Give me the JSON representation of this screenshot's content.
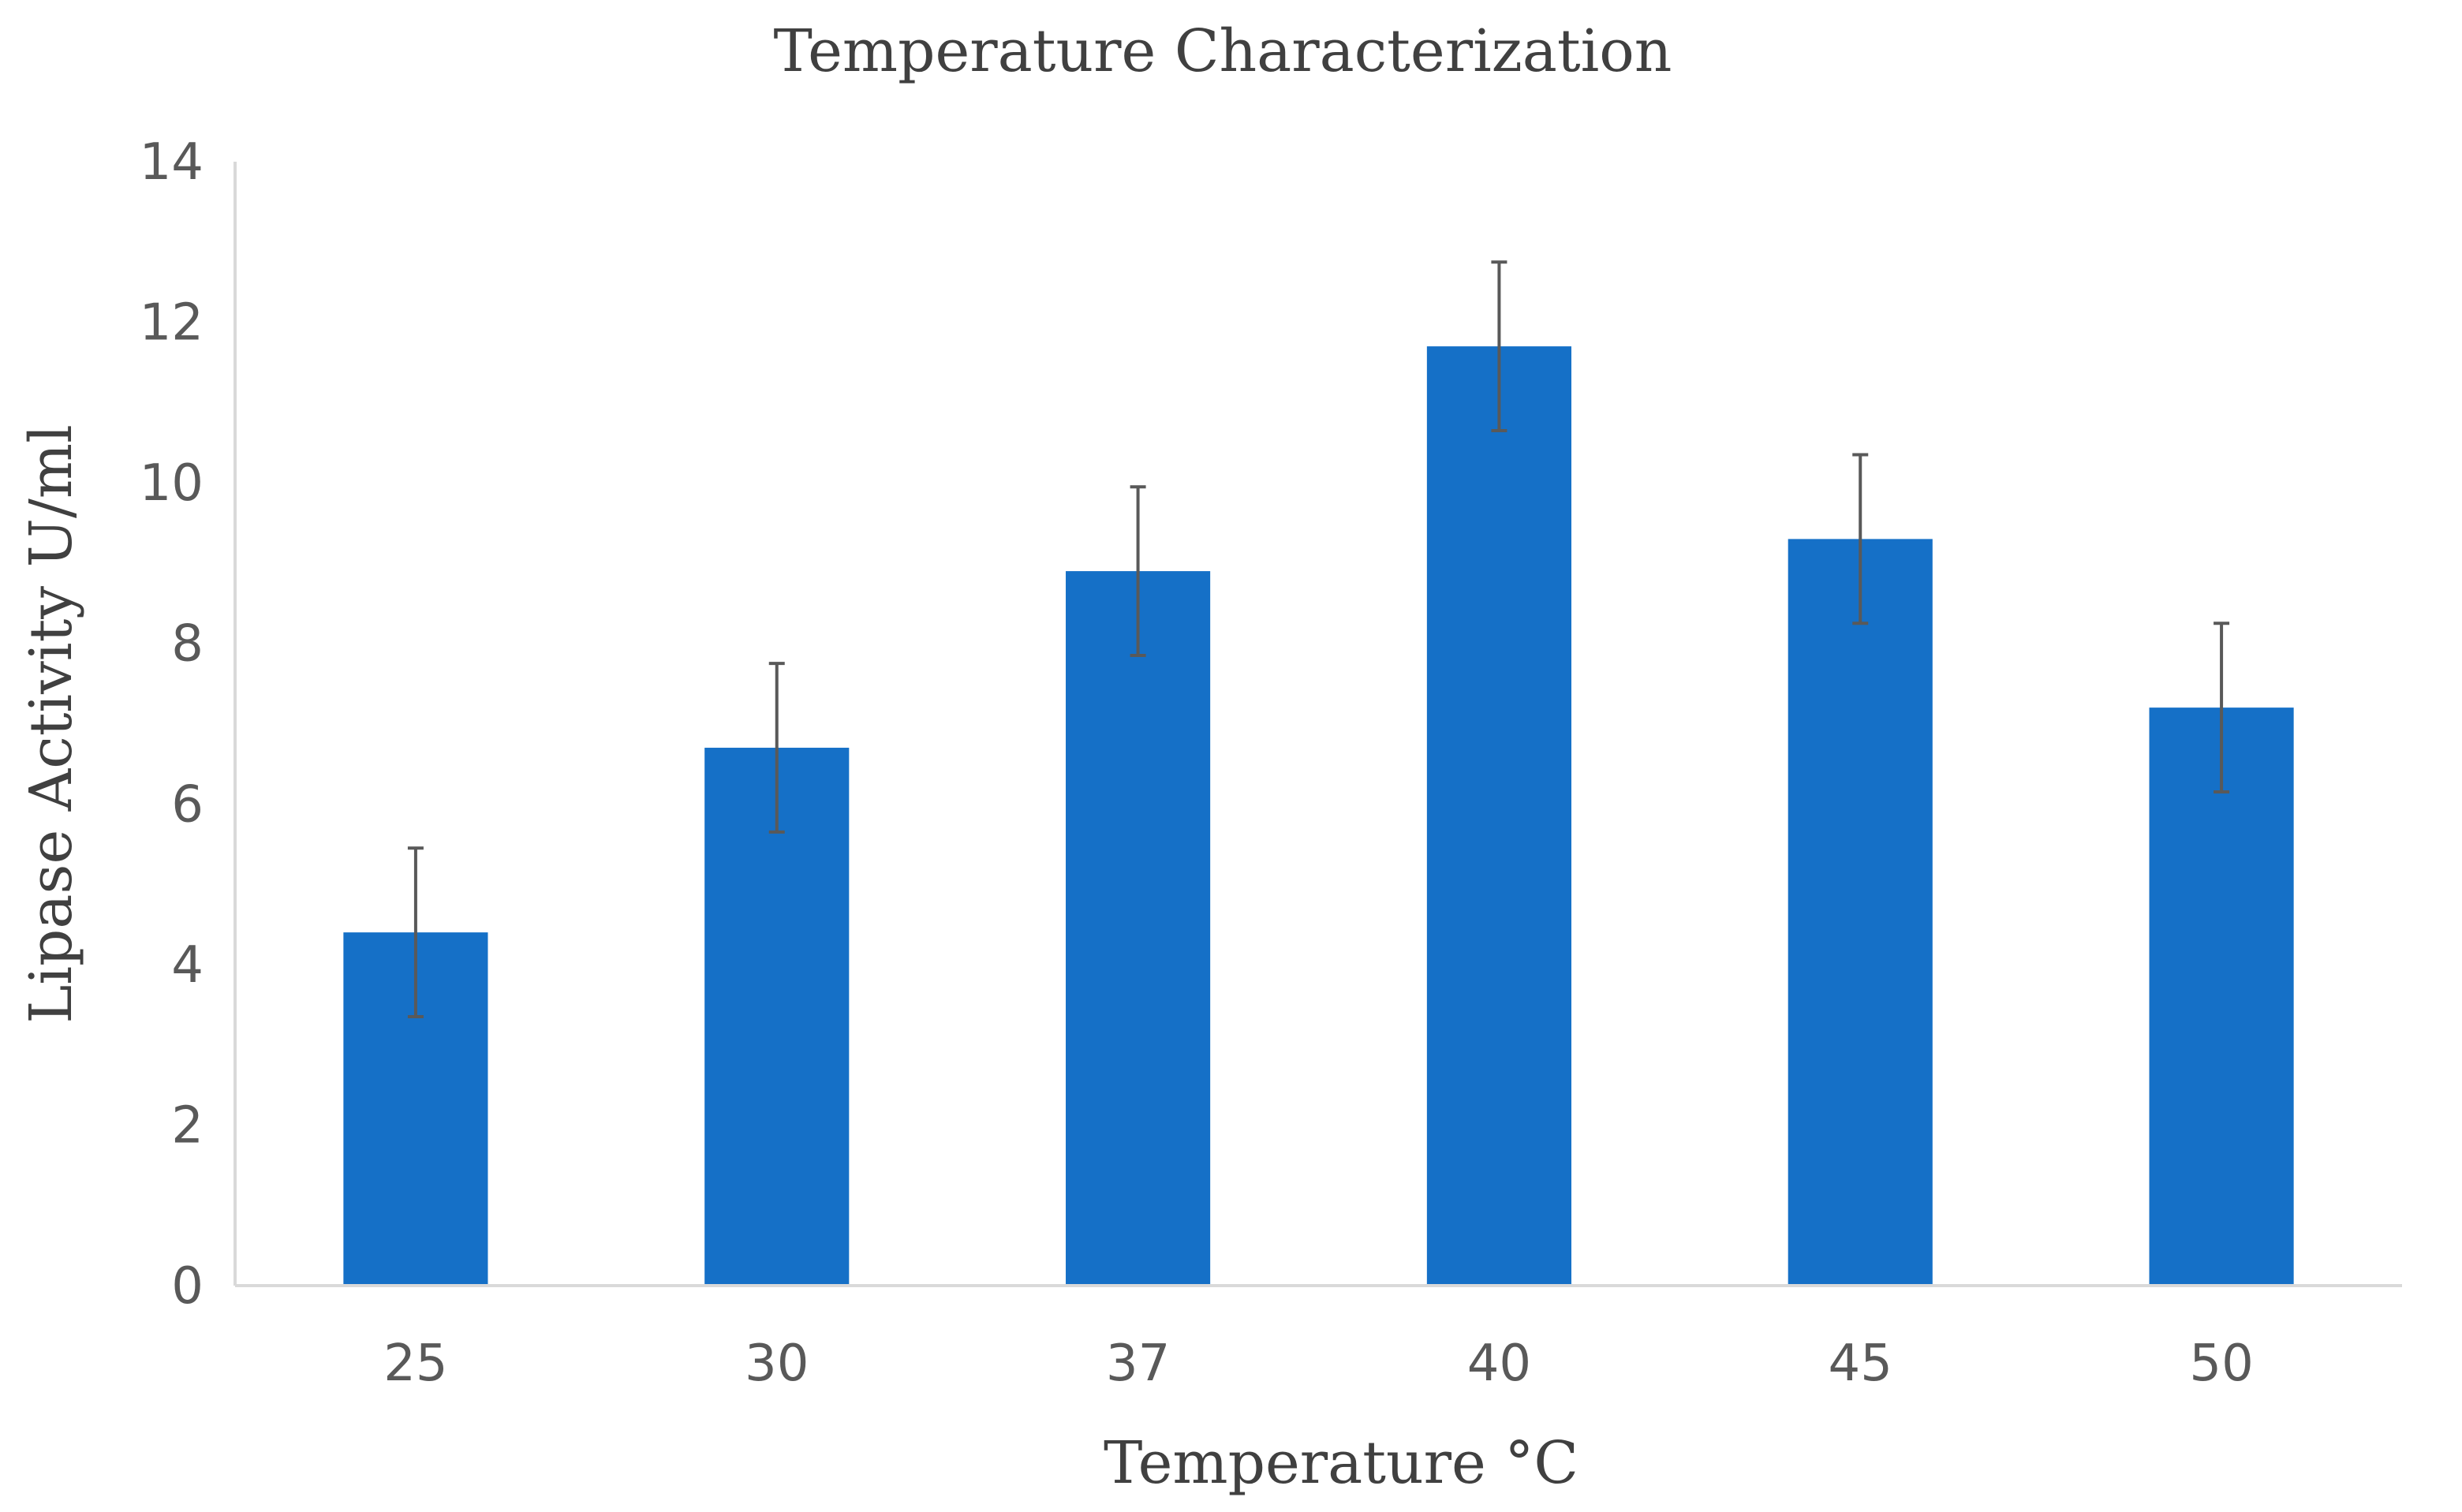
{
  "chart_data": {
    "type": "bar",
    "title": "Temperature Characterization",
    "xlabel": "Temperature °C",
    "ylabel": "Lipase Activity U/ml",
    "categories": [
      "25",
      "30",
      "37",
      "40",
      "45",
      "50"
    ],
    "values": [
      4.4,
      6.7,
      8.9,
      11.7,
      9.3,
      7.2
    ],
    "error": [
      1.05,
      1.05,
      1.05,
      1.05,
      1.05,
      1.05
    ],
    "ylim": [
      0,
      14
    ],
    "yticks": [
      "0",
      "2",
      "4",
      "6",
      "8",
      "10",
      "12",
      "14"
    ],
    "bar_color": "#1570c7",
    "grid": false,
    "legend": "none"
  }
}
